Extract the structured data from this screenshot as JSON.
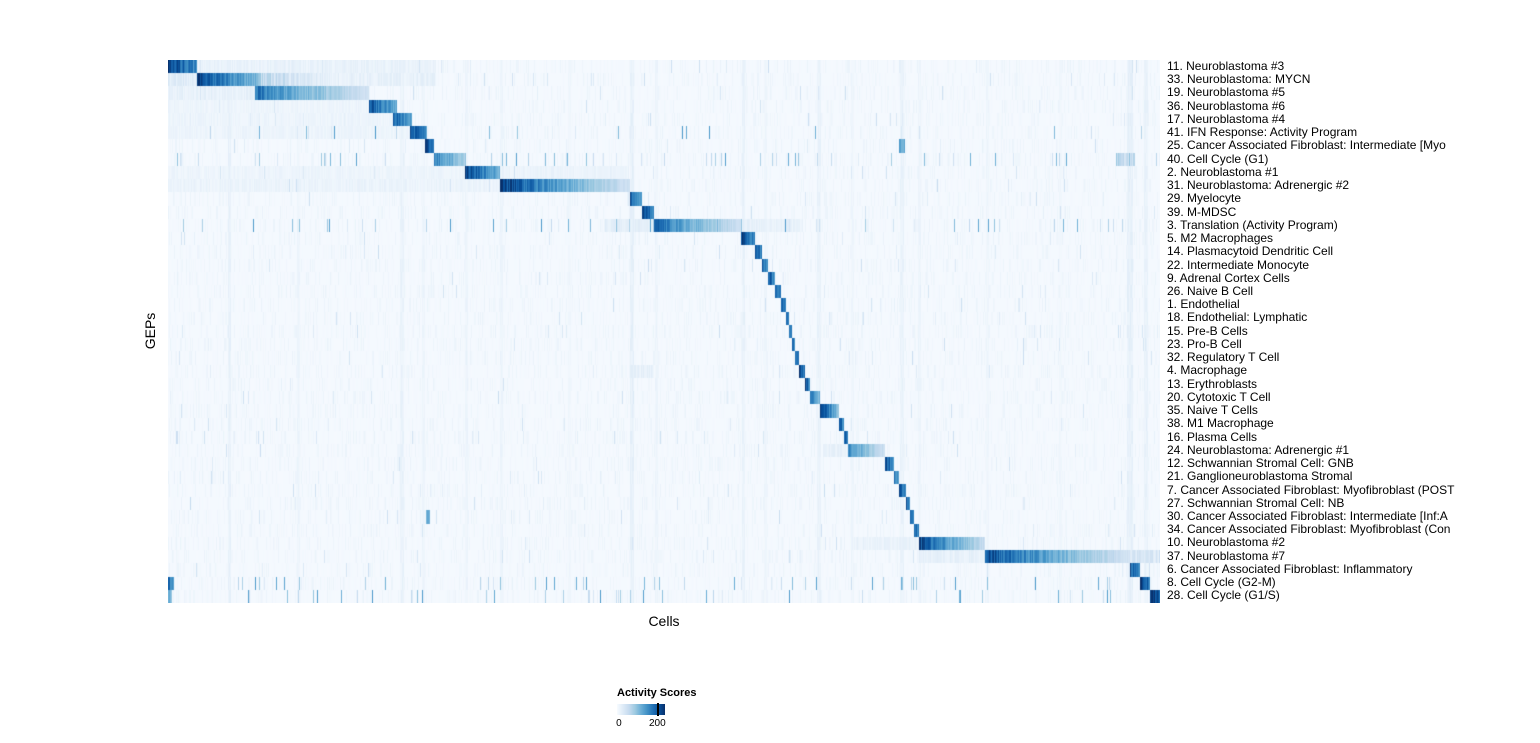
{
  "chart_data": {
    "type": "heatmap",
    "xlabel": "Cells",
    "ylabel": "GEPs",
    "legend": {
      "title": "Activity Scores",
      "ticks": [
        "0",
        "200"
      ],
      "marker_pos": 0.84,
      "range": [
        0,
        230
      ]
    },
    "colormap": [
      "#f7fbff",
      "#deebf7",
      "#c6dbef",
      "#9ecae1",
      "#6baed6",
      "#4292c6",
      "#2171b5",
      "#08519c",
      "#08306b"
    ],
    "seed": 7,
    "rows": [
      {
        "label": "11. Neuroblastoma #3",
        "segments": [
          [
            0.0,
            0.0295,
            1.0,
            0.35
          ],
          [
            0.0295,
            0.27,
            0.07,
            0
          ]
        ]
      },
      {
        "label": "33. Neuroblastoma: MYCN",
        "segments": [
          [
            0.0,
            0.0295,
            0.12,
            0
          ],
          [
            0.0295,
            0.093,
            1.0,
            0.55
          ],
          [
            0.093,
            0.175,
            0.3,
            0.85
          ],
          [
            0.175,
            0.27,
            0.08,
            0
          ]
        ]
      },
      {
        "label": "19. Neuroblastoma #5",
        "segments": [
          [
            0.0,
            0.088,
            0.08,
            0
          ],
          [
            0.088,
            0.203,
            0.78,
            0.75
          ]
        ]
      },
      {
        "label": "36. Neuroblastoma #6",
        "segments": [
          [
            0.0,
            0.203,
            0.05,
            0
          ],
          [
            0.203,
            0.231,
            0.92,
            0.45
          ]
        ]
      },
      {
        "label": "17. Neuroblastoma #4",
        "segments": [
          [
            0.0,
            0.227,
            0.05,
            0
          ],
          [
            0.227,
            0.2455,
            0.88,
            0.4
          ]
        ]
      },
      {
        "label": "41. IFN Response: Activity Program",
        "segments": [
          [
            0.0,
            0.2435,
            0.05,
            0
          ],
          [
            0.2435,
            0.261,
            0.95,
            0.35
          ]
        ],
        "scatter": 0.02
      },
      {
        "label": "25. Cancer Associated Fibroblast: Intermediate [Myo",
        "segments": [
          [
            0.259,
            0.2685,
            0.96,
            0.25
          ],
          [
            0.737,
            0.7425,
            0.55,
            0
          ]
        ]
      },
      {
        "label": "40. Cell Cycle (G1)",
        "segments": [
          [
            0.2685,
            0.299,
            0.72,
            0.5
          ],
          [
            0.956,
            0.975,
            0.3,
            0
          ]
        ],
        "scatter": 0.05
      },
      {
        "label": "2. Neuroblastoma #1",
        "segments": [
          [
            0.0,
            0.299,
            0.05,
            0
          ],
          [
            0.299,
            0.3345,
            1.0,
            0.5
          ],
          [
            0.3345,
            0.465,
            0.06,
            0
          ]
        ]
      },
      {
        "label": "31. Neuroblastoma: Adrenergic #2",
        "segments": [
          [
            0.0,
            0.3345,
            0.06,
            0
          ],
          [
            0.3345,
            0.4655,
            1.0,
            0.8
          ]
        ]
      },
      {
        "label": "29. Myelocyte",
        "segments": [
          [
            0.4655,
            0.4775,
            0.92,
            0.35
          ]
        ]
      },
      {
        "label": "39. M-MDSC",
        "segments": [
          [
            0.4775,
            0.4895,
            1.0,
            0.3
          ]
        ]
      },
      {
        "label": "3. Translation (Activity Program)",
        "segments": [
          [
            0.44,
            0.4895,
            0.1,
            0
          ],
          [
            0.4895,
            0.578,
            0.82,
            0.75
          ],
          [
            0.578,
            0.64,
            0.08,
            0
          ]
        ],
        "scatter": 0.04
      },
      {
        "label": "5. M2 Macrophages",
        "segments": [
          [
            0.578,
            0.5915,
            1.0,
            0.35
          ]
        ]
      },
      {
        "label": "14. Plasmacytoid Dendritic Cell",
        "segments": [
          [
            0.5915,
            0.5985,
            0.95,
            0.25
          ]
        ]
      },
      {
        "label": "22. Intermediate Monocyte",
        "segments": [
          [
            0.5985,
            0.605,
            0.9,
            0.25
          ]
        ]
      },
      {
        "label": "9. Adrenal Cortex Cells",
        "segments": [
          [
            0.605,
            0.6115,
            0.9,
            0.25
          ]
        ]
      },
      {
        "label": "26. Naive B Cell",
        "segments": [
          [
            0.6115,
            0.6175,
            0.92,
            0.25
          ]
        ]
      },
      {
        "label": "1. Endothelial",
        "segments": [
          [
            0.6175,
            0.6225,
            0.9,
            0.2
          ]
        ]
      },
      {
        "label": "18. Endothelial: Lymphatic",
        "segments": [
          [
            0.6225,
            0.6265,
            0.85,
            0.2
          ]
        ]
      },
      {
        "label": "15. Pre-B Cells",
        "segments": [
          [
            0.6265,
            0.6295,
            0.85,
            0.2
          ]
        ]
      },
      {
        "label": "23. Pro-B Cell",
        "segments": [
          [
            0.6295,
            0.6325,
            0.85,
            0.2
          ]
        ]
      },
      {
        "label": "32. Regulatory T Cell",
        "segments": [
          [
            0.6325,
            0.6365,
            0.85,
            0.2
          ]
        ]
      },
      {
        "label": "4. Macrophage",
        "segments": [
          [
            0.6365,
            0.6425,
            0.92,
            0.25
          ],
          [
            0.465,
            0.49,
            0.08,
            0
          ]
        ]
      },
      {
        "label": "13. Erythroblasts",
        "segments": [
          [
            0.6425,
            0.6475,
            0.9,
            0.2
          ]
        ]
      },
      {
        "label": "20. Cytotoxic T Cell",
        "segments": [
          [
            0.6475,
            0.6575,
            0.82,
            0.45
          ]
        ]
      },
      {
        "label": "35. Naive T Cells",
        "segments": [
          [
            0.6575,
            0.676,
            1.0,
            0.55
          ]
        ]
      },
      {
        "label": "38. M1 Macrophage",
        "segments": [
          [
            0.676,
            0.6815,
            0.9,
            0.25
          ]
        ]
      },
      {
        "label": "16. Plasma Cells",
        "segments": [
          [
            0.6815,
            0.6855,
            0.85,
            0.2
          ]
        ]
      },
      {
        "label": "24. Neuroblastoma: Adrenergic #1",
        "segments": [
          [
            0.66,
            0.6855,
            0.08,
            0
          ],
          [
            0.6855,
            0.7225,
            0.72,
            0.7
          ]
        ]
      },
      {
        "label": "12. Schwannian Stromal Cell: GNB",
        "segments": [
          [
            0.7225,
            0.7315,
            1.0,
            0.35
          ]
        ]
      },
      {
        "label": "21. Ganglioneuroblastoma Stromal",
        "segments": [
          [
            0.7315,
            0.7365,
            0.82,
            0.25
          ]
        ]
      },
      {
        "label": "7. Cancer Associated Fibroblast: Myofibroblast (POST",
        "segments": [
          [
            0.7365,
            0.744,
            1.0,
            0.3
          ]
        ]
      },
      {
        "label": "27. Schwannian Stromal Cell: NB",
        "segments": [
          [
            0.744,
            0.748,
            0.85,
            0.2
          ]
        ]
      },
      {
        "label": "30. Cancer Associated Fibroblast: Intermediate [Inf:A",
        "segments": [
          [
            0.748,
            0.7525,
            0.85,
            0.2
          ],
          [
            0.2605,
            0.264,
            0.5,
            0
          ]
        ]
      },
      {
        "label": "34. Cancer Associated Fibroblast: Myofibroblast (Con",
        "segments": [
          [
            0.7525,
            0.757,
            0.88,
            0.2
          ]
        ]
      },
      {
        "label": "10. Neuroblastoma #2",
        "segments": [
          [
            0.69,
            0.757,
            0.07,
            0
          ],
          [
            0.757,
            0.8235,
            0.97,
            0.75
          ]
        ]
      },
      {
        "label": "37. Neuroblastoma #7",
        "segments": [
          [
            0.757,
            0.8235,
            0.08,
            0
          ],
          [
            0.8235,
            0.9695,
            0.95,
            0.8
          ],
          [
            0.97,
            1.0,
            0.15,
            0
          ]
        ]
      },
      {
        "label": "6. Cancer Associated Fibroblast: Inflammatory",
        "segments": [
          [
            0.9695,
            0.9795,
            0.9,
            0.3
          ]
        ]
      },
      {
        "label": "8. Cell Cycle (G2-M)",
        "segments": [
          [
            0.9795,
            0.99,
            1.0,
            0.25
          ],
          [
            0.0,
            0.006,
            0.85,
            0.3
          ]
        ],
        "scatter": 0.05
      },
      {
        "label": "28. Cell Cycle (G1/S)",
        "segments": [
          [
            0.99,
            1.0,
            1.0,
            0.2
          ],
          [
            0.0,
            0.004,
            0.55,
            0.3
          ]
        ],
        "scatter": 0.04
      }
    ],
    "streaks": [
      [
        0.062,
        0.002,
        0.1
      ],
      [
        0.132,
        0.0015,
        0.07
      ],
      [
        0.236,
        0.002,
        0.09
      ],
      [
        0.258,
        0.0015,
        0.07
      ],
      [
        0.301,
        0.0018,
        0.07
      ],
      [
        0.336,
        0.0015,
        0.07
      ],
      [
        0.405,
        0.0015,
        0.05
      ],
      [
        0.468,
        0.002,
        0.11
      ],
      [
        0.492,
        0.0015,
        0.07
      ],
      [
        0.58,
        0.0015,
        0.09
      ],
      [
        0.602,
        0.0015,
        0.06
      ],
      [
        0.656,
        0.002,
        0.09
      ],
      [
        0.69,
        0.0015,
        0.06
      ],
      [
        0.74,
        0.002,
        0.09
      ],
      [
        0.758,
        0.0015,
        0.07
      ],
      [
        0.826,
        0.0015,
        0.06
      ],
      [
        0.9,
        0.0015,
        0.05
      ],
      [
        0.97,
        0.003,
        0.11
      ],
      [
        0.986,
        0.002,
        0.09
      ]
    ]
  }
}
